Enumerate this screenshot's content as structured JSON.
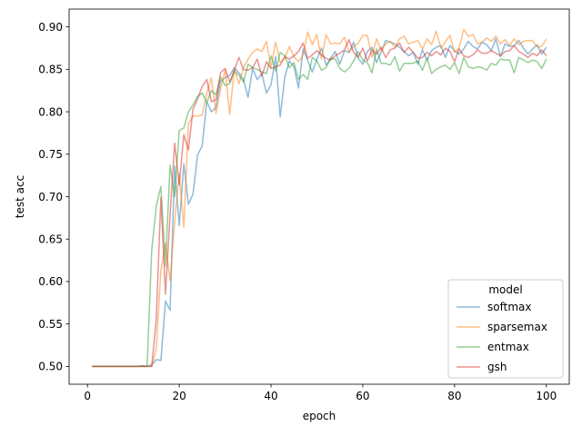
{
  "chart_data": {
    "type": "line",
    "xlabel": "epoch",
    "ylabel": "test acc",
    "xlim": [
      -4,
      105
    ],
    "ylim": [
      0.479,
      0.921
    ],
    "xticks": [
      0,
      20,
      40,
      60,
      80,
      100
    ],
    "yticks": [
      0.5,
      0.55,
      0.6,
      0.65,
      0.7,
      0.75,
      0.8,
      0.85,
      0.9
    ],
    "grid": false,
    "legend": {
      "title": "model",
      "position": "lower-right"
    },
    "series": [
      {
        "name": "softmax",
        "color": "#1f77b4",
        "x": [
          1,
          2,
          3,
          4,
          5,
          6,
          7,
          8,
          9,
          10,
          11,
          12,
          13,
          14,
          15,
          16,
          17,
          18,
          19,
          20,
          21,
          22,
          23,
          24,
          25,
          26,
          27,
          28,
          29,
          30,
          31,
          32,
          33,
          34,
          35,
          36,
          37,
          38,
          39,
          40,
          41,
          42,
          43,
          44,
          45,
          46,
          47,
          48,
          49,
          50,
          51,
          52,
          53,
          54,
          55,
          56,
          57,
          58,
          59,
          60,
          61,
          62,
          63,
          64,
          65,
          66,
          67,
          68,
          69,
          70,
          71,
          72,
          73,
          74,
          75,
          76,
          77,
          78,
          79,
          80,
          81,
          82,
          83,
          84,
          85,
          86,
          87,
          88,
          89,
          90,
          91,
          92,
          93,
          94,
          95,
          96,
          97,
          98,
          99,
          100
        ],
        "y": [
          0.5,
          0.5,
          0.5,
          0.5,
          0.5,
          0.5,
          0.5,
          0.5,
          0.5,
          0.5,
          0.5,
          0.501,
          0.5,
          0.502,
          0.508,
          0.507,
          0.577,
          0.566,
          0.736,
          0.666,
          0.739,
          0.691,
          0.703,
          0.749,
          0.76,
          0.812,
          0.8,
          0.805,
          0.836,
          0.84,
          0.843,
          0.852,
          0.846,
          0.838,
          0.817,
          0.851,
          0.838,
          0.845,
          0.822,
          0.832,
          0.865,
          0.794,
          0.841,
          0.86,
          0.853,
          0.828,
          0.874,
          0.86,
          0.847,
          0.862,
          0.875,
          0.855,
          0.863,
          0.871,
          0.856,
          0.872,
          0.87,
          0.882,
          0.863,
          0.856,
          0.871,
          0.876,
          0.858,
          0.87,
          0.884,
          0.882,
          0.88,
          0.876,
          0.871,
          0.866,
          0.87,
          0.856,
          0.873,
          0.861,
          0.872,
          0.876,
          0.878,
          0.864,
          0.878,
          0.872,
          0.868,
          0.874,
          0.883,
          0.877,
          0.874,
          0.882,
          0.879,
          0.872,
          0.886,
          0.865,
          0.88,
          0.877,
          0.878,
          0.884,
          0.875,
          0.868,
          0.874,
          0.879,
          0.868,
          0.876
        ]
      },
      {
        "name": "sparsemax",
        "color": "#ff7f0e",
        "x": [
          1,
          2,
          3,
          4,
          5,
          6,
          7,
          8,
          9,
          10,
          11,
          12,
          13,
          14,
          15,
          16,
          17,
          18,
          19,
          20,
          21,
          22,
          23,
          24,
          25,
          26,
          27,
          28,
          29,
          30,
          31,
          32,
          33,
          34,
          35,
          36,
          37,
          38,
          39,
          40,
          41,
          42,
          43,
          44,
          45,
          46,
          47,
          48,
          49,
          50,
          51,
          52,
          53,
          54,
          55,
          56,
          57,
          58,
          59,
          60,
          61,
          62,
          63,
          64,
          65,
          66,
          67,
          68,
          69,
          70,
          71,
          72,
          73,
          74,
          75,
          76,
          77,
          78,
          79,
          80,
          81,
          82,
          83,
          84,
          85,
          86,
          87,
          88,
          89,
          90,
          91,
          92,
          93,
          94,
          95,
          96,
          97,
          98,
          99,
          100
        ],
        "y": [
          0.5,
          0.5,
          0.5,
          0.5,
          0.5,
          0.5,
          0.5,
          0.5,
          0.5,
          0.5,
          0.5,
          0.5,
          0.5,
          0.5,
          0.521,
          0.613,
          0.645,
          0.601,
          0.67,
          0.727,
          0.664,
          0.786,
          0.795,
          0.795,
          0.796,
          0.822,
          0.84,
          0.798,
          0.827,
          0.849,
          0.797,
          0.85,
          0.833,
          0.852,
          0.862,
          0.87,
          0.874,
          0.871,
          0.883,
          0.852,
          0.882,
          0.858,
          0.863,
          0.877,
          0.865,
          0.859,
          0.867,
          0.894,
          0.879,
          0.891,
          0.862,
          0.891,
          0.88,
          0.881,
          0.88,
          0.888,
          0.87,
          0.877,
          0.881,
          0.89,
          0.89,
          0.864,
          0.886,
          0.872,
          0.88,
          0.883,
          0.876,
          0.886,
          0.889,
          0.88,
          0.882,
          0.884,
          0.874,
          0.886,
          0.879,
          0.895,
          0.875,
          0.882,
          0.89,
          0.87,
          0.875,
          0.897,
          0.889,
          0.891,
          0.88,
          0.882,
          0.887,
          0.883,
          0.889,
          0.88,
          0.885,
          0.878,
          0.886,
          0.879,
          0.883,
          0.884,
          0.884,
          0.876,
          0.877,
          0.886
        ]
      },
      {
        "name": "entmax",
        "color": "#2ca02c",
        "x": [
          1,
          2,
          3,
          4,
          5,
          6,
          7,
          8,
          9,
          10,
          11,
          12,
          13,
          14,
          15,
          16,
          17,
          18,
          19,
          20,
          21,
          22,
          23,
          24,
          25,
          26,
          27,
          28,
          29,
          30,
          31,
          32,
          33,
          34,
          35,
          36,
          37,
          38,
          39,
          40,
          41,
          42,
          43,
          44,
          45,
          46,
          47,
          48,
          49,
          50,
          51,
          52,
          53,
          54,
          55,
          56,
          57,
          58,
          59,
          60,
          61,
          62,
          63,
          64,
          65,
          66,
          67,
          68,
          69,
          70,
          71,
          72,
          73,
          74,
          75,
          76,
          77,
          78,
          79,
          80,
          81,
          82,
          83,
          84,
          85,
          86,
          87,
          88,
          89,
          90,
          91,
          92,
          93,
          94,
          95,
          96,
          97,
          98,
          99,
          100
        ],
        "y": [
          0.5,
          0.5,
          0.5,
          0.5,
          0.5,
          0.5,
          0.5,
          0.5,
          0.5,
          0.5,
          0.5,
          0.5,
          0.5,
          0.637,
          0.689,
          0.712,
          0.618,
          0.737,
          0.7,
          0.778,
          0.781,
          0.8,
          0.808,
          0.818,
          0.822,
          0.811,
          0.825,
          0.82,
          0.841,
          0.831,
          0.833,
          0.848,
          0.843,
          0.835,
          0.856,
          0.852,
          0.85,
          0.847,
          0.845,
          0.866,
          0.848,
          0.87,
          0.866,
          0.852,
          0.858,
          0.838,
          0.844,
          0.838,
          0.864,
          0.86,
          0.849,
          0.852,
          0.863,
          0.862,
          0.851,
          0.847,
          0.851,
          0.86,
          0.871,
          0.861,
          0.858,
          0.846,
          0.874,
          0.857,
          0.857,
          0.855,
          0.865,
          0.848,
          0.857,
          0.857,
          0.857,
          0.86,
          0.849,
          0.863,
          0.845,
          0.85,
          0.853,
          0.855,
          0.85,
          0.858,
          0.845,
          0.864,
          0.853,
          0.851,
          0.853,
          0.852,
          0.849,
          0.857,
          0.855,
          0.862,
          0.861,
          0.861,
          0.846,
          0.864,
          0.861,
          0.858,
          0.861,
          0.859,
          0.851,
          0.862
        ]
      },
      {
        "name": "gsh",
        "color": "#d62728",
        "x": [
          1,
          2,
          3,
          4,
          5,
          6,
          7,
          8,
          9,
          10,
          11,
          12,
          13,
          14,
          15,
          16,
          17,
          18,
          19,
          20,
          21,
          22,
          23,
          24,
          25,
          26,
          27,
          28,
          29,
          30,
          31,
          32,
          33,
          34,
          35,
          36,
          37,
          38,
          39,
          40,
          41,
          42,
          43,
          44,
          45,
          46,
          47,
          48,
          49,
          50,
          51,
          52,
          53,
          54,
          55,
          56,
          57,
          58,
          59,
          60,
          61,
          62,
          63,
          64,
          65,
          66,
          67,
          68,
          69,
          70,
          71,
          72,
          73,
          74,
          75,
          76,
          77,
          78,
          79,
          80,
          81,
          82,
          83,
          84,
          85,
          86,
          87,
          88,
          89,
          90,
          91,
          92,
          93,
          94,
          95,
          96,
          97,
          98,
          99,
          100
        ],
        "y": [
          0.5,
          0.5,
          0.5,
          0.5,
          0.5,
          0.5,
          0.5,
          0.5,
          0.5,
          0.5,
          0.5,
          0.5,
          0.5,
          0.5,
          0.555,
          0.699,
          0.585,
          0.678,
          0.763,
          0.714,
          0.773,
          0.755,
          0.803,
          0.815,
          0.83,
          0.838,
          0.812,
          0.814,
          0.846,
          0.851,
          0.835,
          0.849,
          0.864,
          0.85,
          0.849,
          0.852,
          0.862,
          0.842,
          0.859,
          0.851,
          0.853,
          0.855,
          0.865,
          0.862,
          0.866,
          0.871,
          0.881,
          0.863,
          0.867,
          0.872,
          0.867,
          0.863,
          0.861,
          0.866,
          0.869,
          0.873,
          0.885,
          0.87,
          0.864,
          0.875,
          0.86,
          0.873,
          0.868,
          0.876,
          0.864,
          0.873,
          0.875,
          0.881,
          0.87,
          0.876,
          0.87,
          0.863,
          0.864,
          0.87,
          0.866,
          0.871,
          0.867,
          0.875,
          0.871,
          0.859,
          0.874,
          0.866,
          0.864,
          0.867,
          0.873,
          0.869,
          0.869,
          0.872,
          0.869,
          0.866,
          0.871,
          0.872,
          0.878,
          0.871,
          0.868,
          0.864,
          0.869,
          0.866,
          0.873,
          0.866
        ]
      }
    ]
  }
}
